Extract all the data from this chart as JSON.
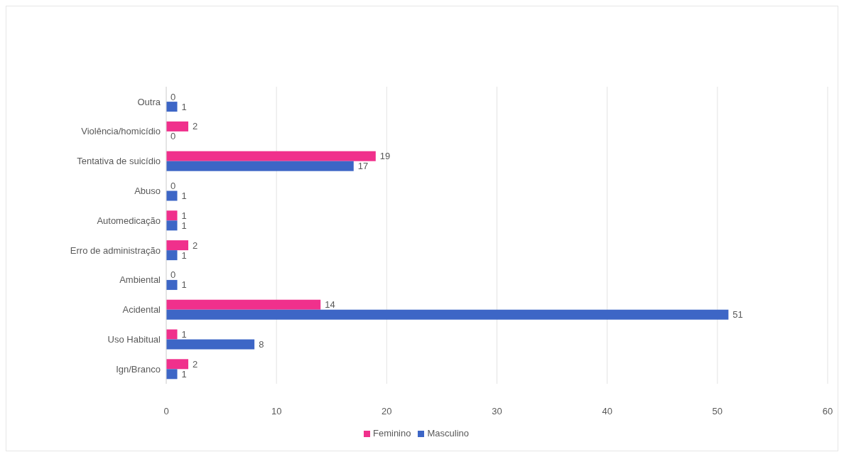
{
  "chart_data": {
    "type": "bar",
    "orientation": "horizontal",
    "categories": [
      "Outra",
      "Violência/homicídio",
      "Tentativa de suicídio",
      "Abuso",
      "Automedicação",
      "Erro de administração",
      "Ambiental",
      "Acidental",
      "Uso Habitual",
      "Ign/Branco"
    ],
    "series": [
      {
        "name": "Feminino",
        "color": "#f0308c",
        "values": [
          0,
          2,
          19,
          0,
          1,
          2,
          0,
          14,
          1,
          2
        ]
      },
      {
        "name": "Masculino",
        "color": "#3d66c6",
        "values": [
          1,
          0,
          17,
          1,
          1,
          1,
          1,
          51,
          8,
          1
        ]
      }
    ],
    "xlim": [
      0,
      60
    ],
    "xticks": [
      0,
      10,
      20,
      30,
      40,
      50,
      60
    ],
    "grid": "x",
    "legend": "bottom",
    "data_labels": true
  }
}
